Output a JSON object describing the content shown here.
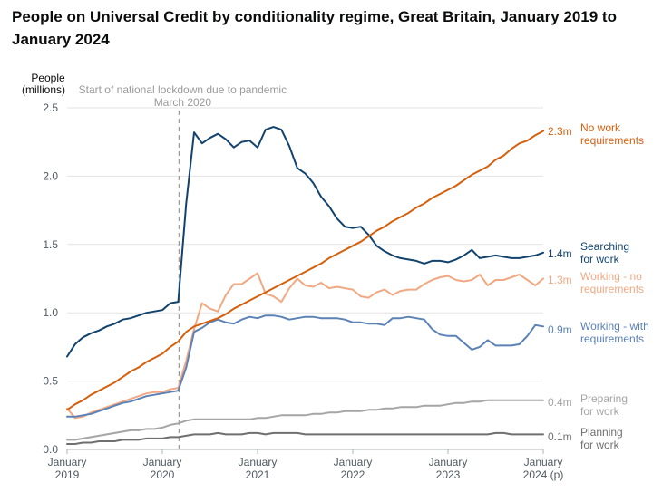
{
  "chart_data": {
    "type": "line",
    "title": "People on Universal Credit by conditionality regime, Great Britain, January 2019 to January 2024",
    "ylabel": [
      "People",
      "(millions)"
    ],
    "ylim": [
      0,
      2.5
    ],
    "yticks": [
      "0.0",
      "0.5",
      "1.0",
      "1.5",
      "2.0",
      "2.5"
    ],
    "ytick_values": [
      0,
      0.5,
      1.0,
      1.5,
      2.0,
      2.5
    ],
    "xticks": [
      {
        "month_index": 0,
        "lines": [
          "January",
          "2019"
        ]
      },
      {
        "month_index": 12,
        "lines": [
          "January",
          "2020"
        ]
      },
      {
        "month_index": 24,
        "lines": [
          "January",
          "2021"
        ]
      },
      {
        "month_index": 36,
        "lines": [
          "January",
          "2022"
        ]
      },
      {
        "month_index": 48,
        "lines": [
          "January",
          "2023"
        ]
      },
      {
        "month_index": 60,
        "lines": [
          "January",
          "2024 (p)"
        ]
      }
    ],
    "x_unit": "months since January 2019",
    "grid": true,
    "annotation": {
      "month_index": 14.1,
      "lines": [
        "Start of national lockdown due to pandemic",
        "March 2020"
      ]
    },
    "series": [
      {
        "name": "No work requirements",
        "label_lines": [
          "No work",
          "requirements"
        ],
        "end_value": "2.3m",
        "color": "#d4600e",
        "values": [
          0.29,
          0.33,
          0.36,
          0.4,
          0.43,
          0.46,
          0.49,
          0.53,
          0.57,
          0.6,
          0.64,
          0.67,
          0.7,
          0.75,
          0.79,
          0.86,
          0.9,
          0.92,
          0.94,
          0.96,
          0.99,
          1.03,
          1.06,
          1.09,
          1.12,
          1.15,
          1.18,
          1.21,
          1.24,
          1.27,
          1.3,
          1.33,
          1.36,
          1.4,
          1.43,
          1.46,
          1.49,
          1.52,
          1.56,
          1.6,
          1.63,
          1.67,
          1.7,
          1.73,
          1.77,
          1.8,
          1.84,
          1.87,
          1.9,
          1.93,
          1.97,
          2.01,
          2.04,
          2.07,
          2.12,
          2.15,
          2.2,
          2.24,
          2.26,
          2.3,
          2.33
        ]
      },
      {
        "name": "Searching for work",
        "label_lines": [
          "Searching",
          "for work"
        ],
        "end_value": "1.4m",
        "color": "#12436d",
        "values": [
          0.68,
          0.77,
          0.82,
          0.85,
          0.87,
          0.9,
          0.92,
          0.95,
          0.96,
          0.98,
          1.0,
          1.01,
          1.02,
          1.07,
          1.08,
          1.8,
          2.32,
          2.24,
          2.28,
          2.31,
          2.27,
          2.21,
          2.25,
          2.26,
          2.21,
          2.34,
          2.36,
          2.34,
          2.22,
          2.06,
          2.02,
          1.95,
          1.85,
          1.78,
          1.69,
          1.63,
          1.62,
          1.63,
          1.57,
          1.49,
          1.45,
          1.42,
          1.4,
          1.39,
          1.38,
          1.36,
          1.38,
          1.38,
          1.37,
          1.39,
          1.42,
          1.46,
          1.4,
          1.41,
          1.42,
          1.41,
          1.4,
          1.4,
          1.41,
          1.42,
          1.44
        ]
      },
      {
        "name": "Working - no requirements",
        "label_lines": [
          "Working - no",
          "requirements"
        ],
        "end_value": "1.3m",
        "color": "#f0a983",
        "values": [
          0.3,
          0.23,
          0.24,
          0.27,
          0.29,
          0.31,
          0.33,
          0.35,
          0.37,
          0.39,
          0.41,
          0.42,
          0.42,
          0.44,
          0.45,
          0.65,
          0.88,
          1.07,
          1.03,
          1.01,
          1.13,
          1.21,
          1.21,
          1.25,
          1.29,
          1.14,
          1.12,
          1.08,
          1.18,
          1.25,
          1.2,
          1.19,
          1.22,
          1.18,
          1.19,
          1.18,
          1.17,
          1.12,
          1.11,
          1.15,
          1.17,
          1.13,
          1.16,
          1.17,
          1.17,
          1.21,
          1.24,
          1.26,
          1.27,
          1.24,
          1.23,
          1.24,
          1.28,
          1.2,
          1.24,
          1.24,
          1.26,
          1.28,
          1.24,
          1.2,
          1.25
        ]
      },
      {
        "name": "Working - with requirements",
        "label_lines": [
          "Working - with",
          "requirements"
        ],
        "end_value": "0.9m",
        "color": "#5b82b6",
        "values": [
          0.24,
          0.24,
          0.25,
          0.26,
          0.28,
          0.3,
          0.32,
          0.34,
          0.35,
          0.37,
          0.39,
          0.4,
          0.41,
          0.42,
          0.43,
          0.6,
          0.86,
          0.89,
          0.93,
          0.95,
          0.93,
          0.92,
          0.95,
          0.97,
          0.96,
          0.98,
          0.98,
          0.97,
          0.95,
          0.96,
          0.97,
          0.97,
          0.96,
          0.96,
          0.96,
          0.95,
          0.93,
          0.93,
          0.92,
          0.92,
          0.91,
          0.96,
          0.96,
          0.97,
          0.96,
          0.95,
          0.88,
          0.84,
          0.83,
          0.83,
          0.78,
          0.73,
          0.75,
          0.8,
          0.76,
          0.76,
          0.76,
          0.77,
          0.83,
          0.91,
          0.9
        ]
      },
      {
        "name": "Preparing for work",
        "label_lines": [
          "Preparing",
          "for work"
        ],
        "end_value": "0.4m",
        "color": "#a5a5a5",
        "values": [
          0.07,
          0.07,
          0.08,
          0.09,
          0.1,
          0.11,
          0.12,
          0.13,
          0.14,
          0.14,
          0.15,
          0.15,
          0.16,
          0.18,
          0.19,
          0.21,
          0.22,
          0.22,
          0.22,
          0.22,
          0.22,
          0.22,
          0.22,
          0.22,
          0.23,
          0.23,
          0.24,
          0.25,
          0.25,
          0.25,
          0.25,
          0.26,
          0.26,
          0.27,
          0.27,
          0.28,
          0.28,
          0.28,
          0.29,
          0.29,
          0.3,
          0.3,
          0.31,
          0.31,
          0.31,
          0.32,
          0.32,
          0.32,
          0.33,
          0.34,
          0.34,
          0.35,
          0.35,
          0.36,
          0.36,
          0.36,
          0.36,
          0.36,
          0.36,
          0.36,
          0.36
        ]
      },
      {
        "name": "Planning for work",
        "label_lines": [
          "Planning",
          "for work"
        ],
        "end_value": "0.1m",
        "color": "#6f6f6f",
        "values": [
          0.04,
          0.04,
          0.05,
          0.05,
          0.06,
          0.06,
          0.06,
          0.07,
          0.07,
          0.07,
          0.08,
          0.08,
          0.08,
          0.09,
          0.09,
          0.1,
          0.11,
          0.11,
          0.11,
          0.12,
          0.11,
          0.11,
          0.11,
          0.12,
          0.12,
          0.11,
          0.12,
          0.12,
          0.12,
          0.12,
          0.11,
          0.11,
          0.11,
          0.11,
          0.11,
          0.11,
          0.11,
          0.11,
          0.11,
          0.11,
          0.11,
          0.11,
          0.11,
          0.11,
          0.11,
          0.11,
          0.11,
          0.11,
          0.11,
          0.11,
          0.11,
          0.11,
          0.11,
          0.11,
          0.12,
          0.12,
          0.11,
          0.11,
          0.11,
          0.11,
          0.11
        ]
      }
    ]
  }
}
